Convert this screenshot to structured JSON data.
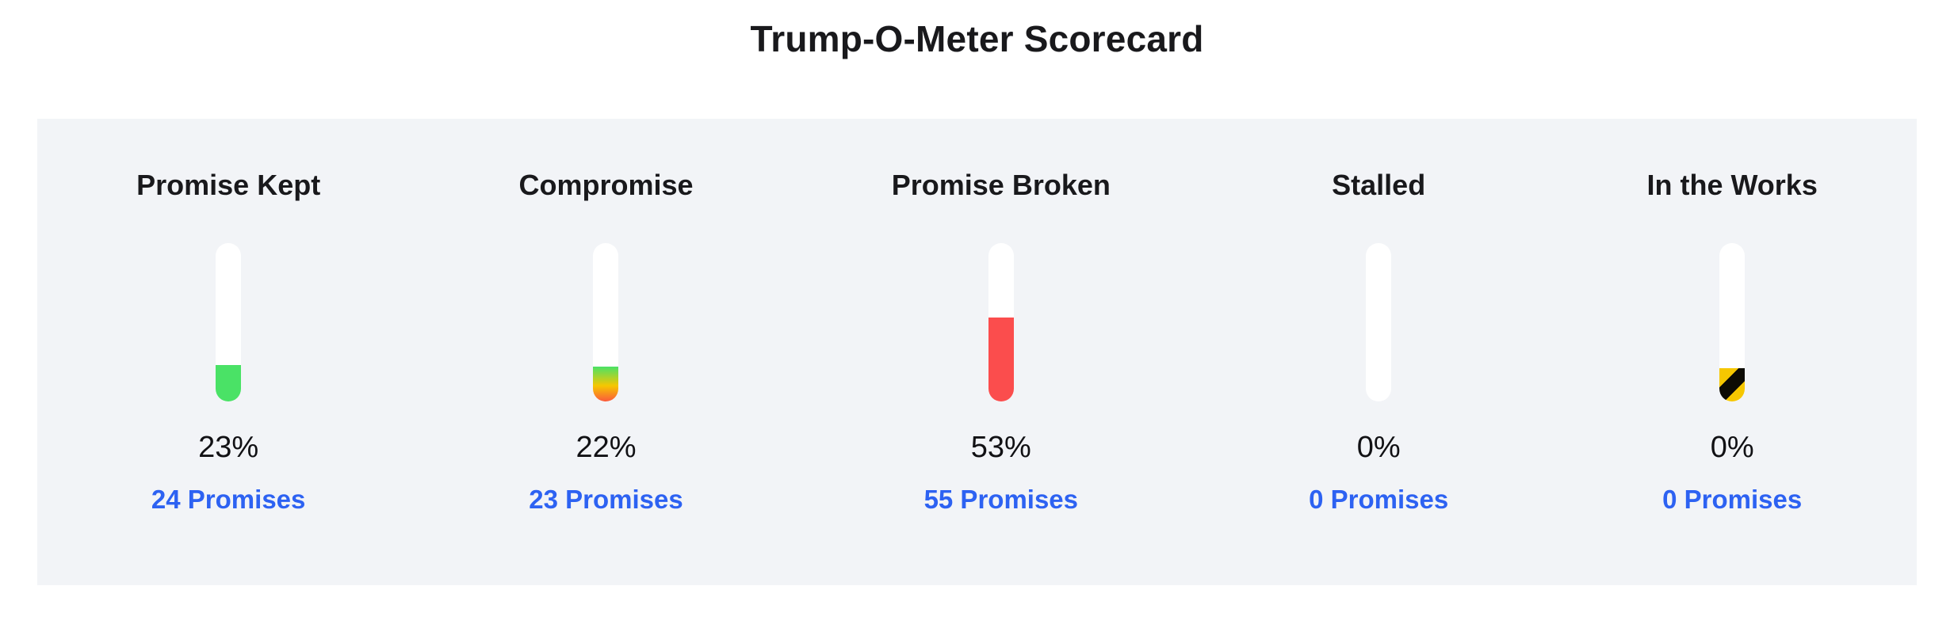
{
  "page": {
    "title": "Trump-O-Meter Scorecard",
    "card_bg": "#f2f4f7",
    "link_color": "#2d62f2",
    "tube_color": "#ffffff",
    "status_colors": {
      "kept_green": "#4ae266",
      "broken_red": "#fb4d4d",
      "works_yellow": "#f6c700",
      "works_black": "#0d0b04"
    }
  },
  "categories": [
    {
      "label": "Promise Kept",
      "percent": "23%",
      "promises": "24 Promises",
      "fill_height_pct": 23,
      "fill_css": "#4ae266"
    },
    {
      "label": "Compromise",
      "percent": "22%",
      "promises": "23 Promises",
      "fill_height_pct": 22,
      "fill_css": "linear-gradient(180deg, #4ae266 0%, #f6c700 55%, #fb5a3d 100%)"
    },
    {
      "label": "Promise Broken",
      "percent": "53%",
      "promises": "55 Promises",
      "fill_height_pct": 53,
      "fill_css": "#fb4d4d"
    },
    {
      "label": "Stalled",
      "percent": "0%",
      "promises": "0 Promises",
      "fill_height_pct": 0,
      "fill_css": "transparent"
    },
    {
      "label": "In the Works",
      "percent": "0%",
      "promises": "0 Promises",
      "fill_height_pct": 21,
      "fill_css": "repeating-linear-gradient(135deg, #f6c700 0px, #f6c700 17px, #0d0b04 17px, #0d0b04 34px)"
    }
  ],
  "chart_data": {
    "type": "bar",
    "title": "Trump-O-Meter Scorecard",
    "categories": [
      "Promise Kept",
      "Compromise",
      "Promise Broken",
      "Stalled",
      "In the Works"
    ],
    "series": [
      {
        "name": "percent_of_promises",
        "values": [
          23,
          22,
          53,
          0,
          0
        ]
      },
      {
        "name": "promise_count",
        "values": [
          24,
          23,
          55,
          0,
          0
        ]
      }
    ],
    "ylim": [
      0,
      100
    ],
    "grid": false,
    "legend_position": "none",
    "notes": "Each category rendered as a vertical thermometer meter filled to its percent value; In the Works meter shows a small yellow/black caution-stripe segment"
  }
}
